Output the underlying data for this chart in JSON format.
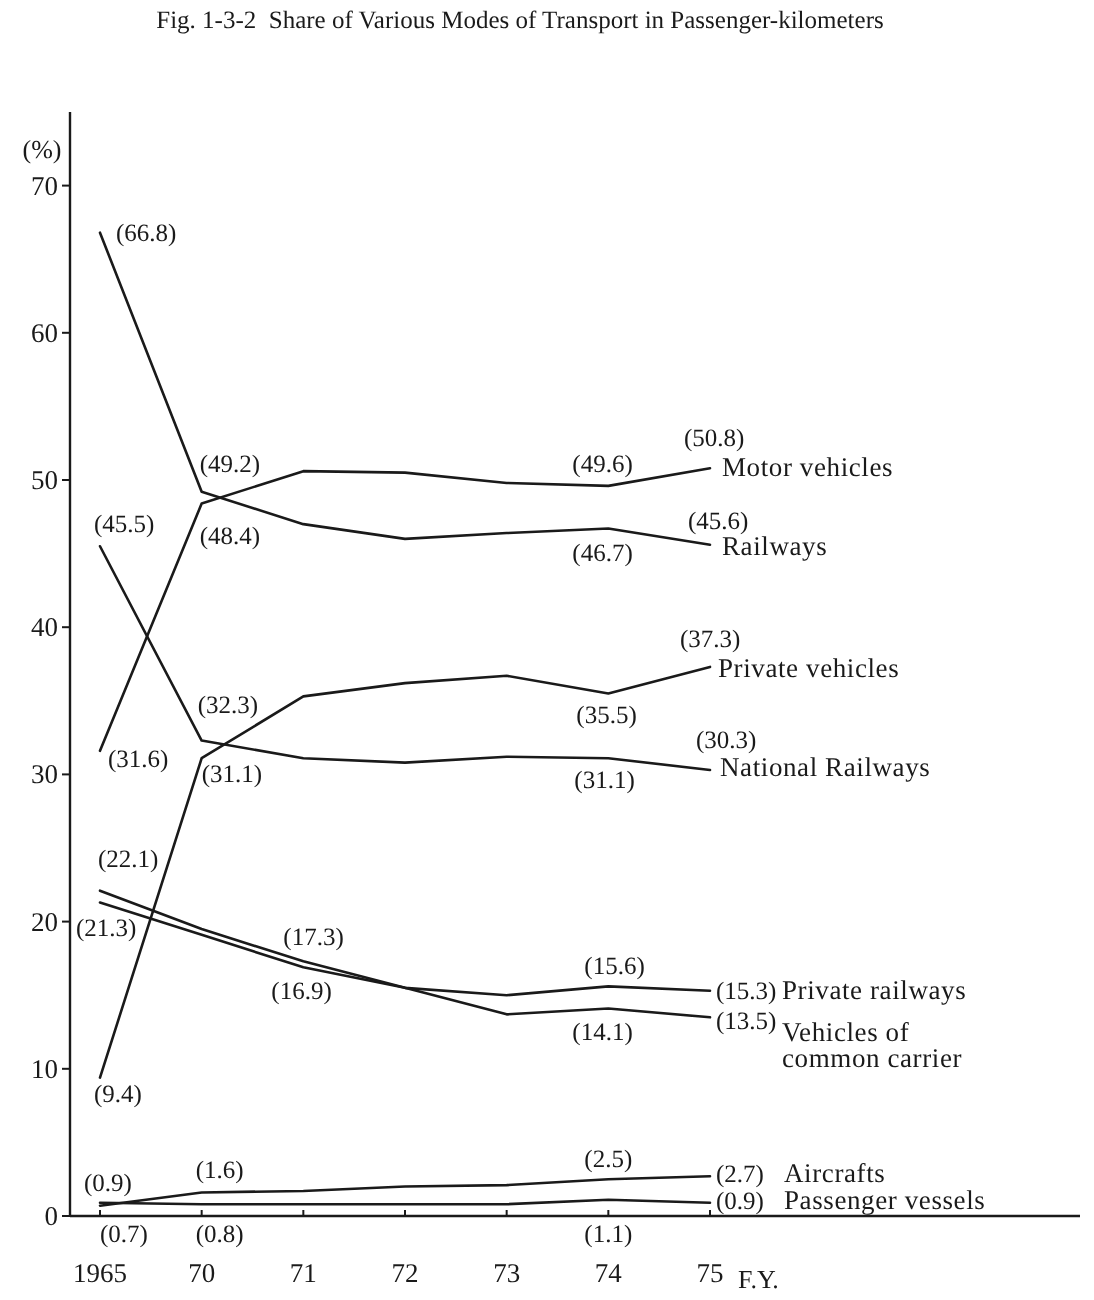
{
  "chart_data": {
    "type": "line",
    "title": "Fig. 1-3-2  Share of Various Modes of Transport in Passenger-kilometers",
    "xlabel": "F.Y.",
    "ylabel": "(%)",
    "categories": [
      "1965",
      "70",
      "71",
      "72",
      "73",
      "74",
      "75"
    ],
    "ylim": [
      0,
      75
    ],
    "yticks": [
      0,
      10,
      20,
      30,
      40,
      50,
      60,
      70
    ],
    "series": [
      {
        "name": "Motor vehicles",
        "color": "#1a1a1a",
        "values": [
          31.6,
          48.4,
          50.6,
          50.5,
          49.8,
          49.6,
          50.8
        ],
        "value_labels": [
          "(31.6)",
          "(48.4)",
          null,
          null,
          null,
          "(49.6)",
          "(50.8)"
        ]
      },
      {
        "name": "Railways",
        "color": "#1a1a1a",
        "values": [
          66.8,
          49.2,
          47.0,
          46.0,
          46.4,
          46.7,
          45.6
        ],
        "value_labels": [
          "(66.8)",
          "(49.2)",
          null,
          null,
          null,
          "(46.7)",
          "(45.6)"
        ]
      },
      {
        "name": "Private vehicles",
        "color": "#1a1a1a",
        "values": [
          9.4,
          31.1,
          35.3,
          36.2,
          36.7,
          35.5,
          37.3
        ],
        "value_labels": [
          "(9.4)",
          "(31.1)",
          null,
          null,
          null,
          "(35.5)",
          "(37.3)"
        ]
      },
      {
        "name": "National Railways",
        "color": "#1a1a1a",
        "values": [
          45.5,
          32.3,
          31.1,
          30.8,
          31.2,
          31.1,
          30.3
        ],
        "value_labels": [
          "(45.5)",
          "(32.3)",
          null,
          null,
          null,
          "(31.1)",
          "(30.3)"
        ]
      },
      {
        "name": "Private railways",
        "color": "#1a1a1a",
        "values": [
          21.3,
          19.1,
          16.9,
          15.5,
          15.0,
          15.6,
          15.3
        ],
        "value_labels": [
          "(21.3)",
          null,
          "(16.9)",
          null,
          null,
          "(15.6)",
          "(15.3)"
        ]
      },
      {
        "name": "Vehicles of common carrier",
        "color": "#1a1a1a",
        "values": [
          22.1,
          19.5,
          17.3,
          15.5,
          13.7,
          14.1,
          13.5
        ],
        "value_labels": [
          "(22.1)",
          null,
          "(17.3)",
          null,
          null,
          "(14.1)",
          "(13.5)"
        ]
      },
      {
        "name": "Aircrafts",
        "color": "#1a1a1a",
        "values": [
          0.7,
          1.6,
          1.7,
          2.0,
          2.1,
          2.5,
          2.7
        ],
        "value_labels": [
          "(0.7)",
          "(1.6)",
          null,
          null,
          null,
          "(2.5)",
          "(2.7)"
        ]
      },
      {
        "name": "Passenger vessels",
        "color": "#1a1a1a",
        "values": [
          0.9,
          0.8,
          0.8,
          0.8,
          0.8,
          1.1,
          0.9
        ],
        "value_labels": [
          "(0.9)",
          "(0.8)",
          null,
          null,
          null,
          "(1.1)",
          "(0.9)"
        ]
      }
    ]
  }
}
